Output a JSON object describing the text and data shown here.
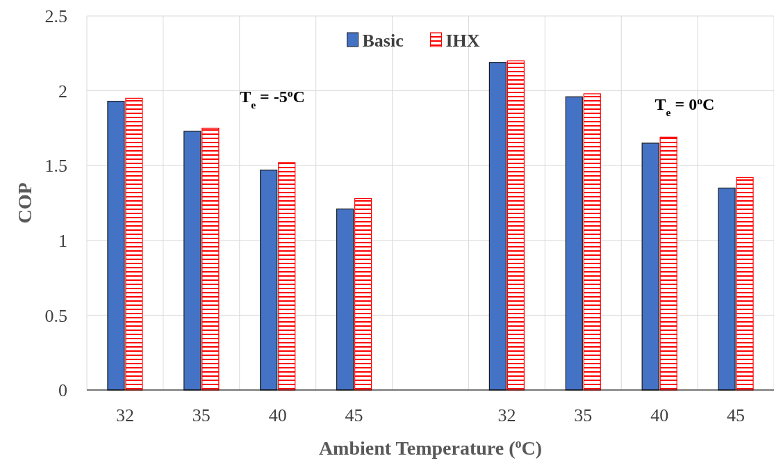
{
  "chart_data": {
    "type": "bar",
    "xlabel": "Ambient Temperature ($^{o}$C)",
    "ylabel": "COP",
    "categories": [
      "32",
      "35",
      "40",
      "45",
      null,
      "32",
      "35",
      "40",
      "45"
    ],
    "series": [
      {
        "name": "Basic",
        "color": "#4472c4",
        "values": [
          1.93,
          1.73,
          1.47,
          1.21,
          null,
          2.19,
          1.96,
          1.65,
          1.35
        ]
      },
      {
        "name": "IHX",
        "color": "#ff0000",
        "values": [
          1.95,
          1.75,
          1.52,
          1.28,
          null,
          2.2,
          1.98,
          1.69,
          1.42
        ]
      }
    ],
    "ylim": [
      0,
      2.5
    ],
    "yticks": [
      0,
      0.5,
      1,
      1.5,
      2,
      2.5
    ],
    "grid": true,
    "legend": "top",
    "annotations": [
      "T$_{e}$ = -5$^{o}$C",
      "T$_{e}$ = 0$^{o}$C"
    ]
  }
}
